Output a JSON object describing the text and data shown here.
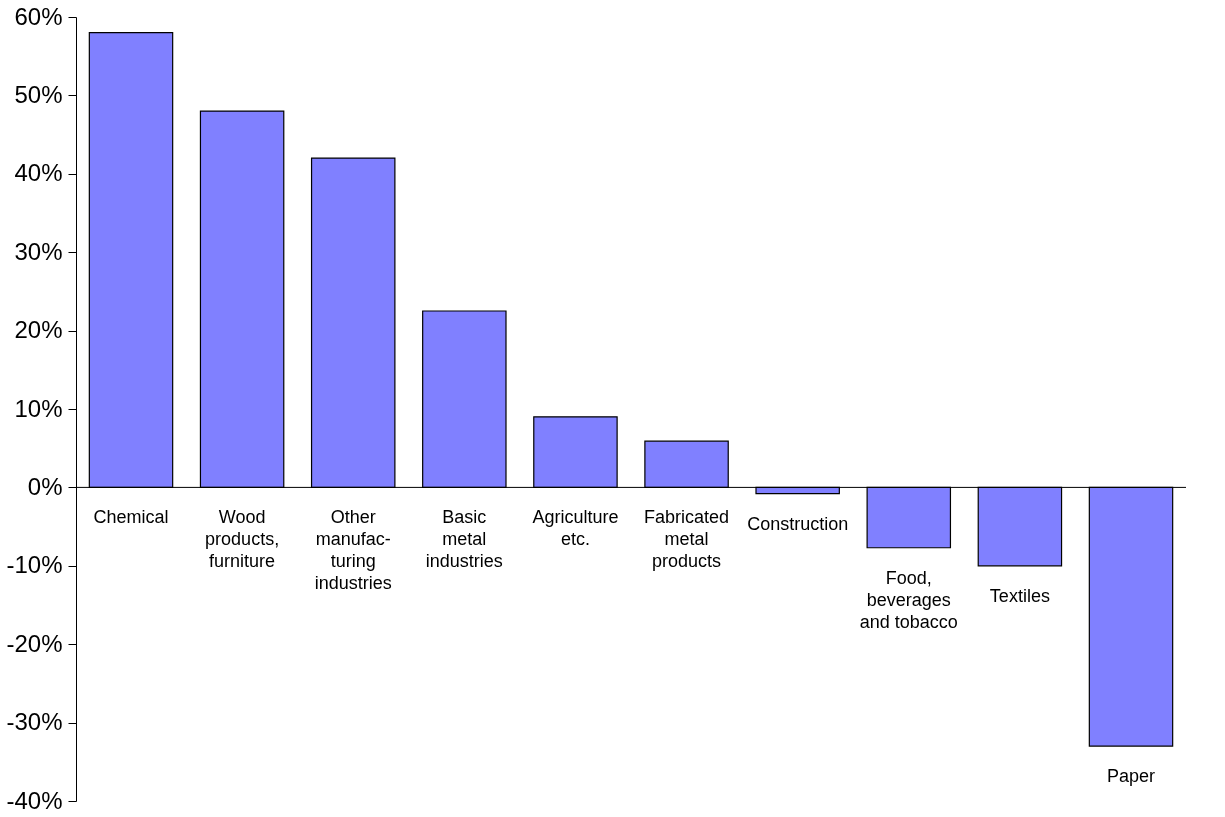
{
  "chart_data": {
    "type": "bar",
    "categories": [
      "Chemical",
      "Wood\nproducts,\nfurniture",
      "Other\nmanufac-\nturing\nindustries",
      "Basic\nmetal\nindustries",
      "Agriculture\netc.",
      "Fabricated\nmetal\nproducts",
      "Construction",
      "Food,\nbeverages\nand tobacco",
      "Textiles",
      "Paper"
    ],
    "values": [
      58,
      48,
      42,
      22.5,
      9,
      5.9,
      -0.8,
      -7.7,
      -10,
      -33
    ],
    "color": "#8080ff",
    "ylim": [
      -40,
      60
    ],
    "yticks": [
      {
        "value": -40,
        "label": "-40%"
      },
      {
        "value": -30,
        "label": "-30%"
      },
      {
        "value": -20,
        "label": "-20%"
      },
      {
        "value": -10,
        "label": "-10%"
      },
      {
        "value": 0,
        "label": "0%"
      },
      {
        "value": 10,
        "label": "10%"
      },
      {
        "value": 20,
        "label": "20%"
      },
      {
        "value": 30,
        "label": "30%"
      },
      {
        "value": 40,
        "label": "40%"
      },
      {
        "value": 50,
        "label": "50%"
      },
      {
        "value": 60,
        "label": "60%"
      }
    ],
    "grid": false
  }
}
